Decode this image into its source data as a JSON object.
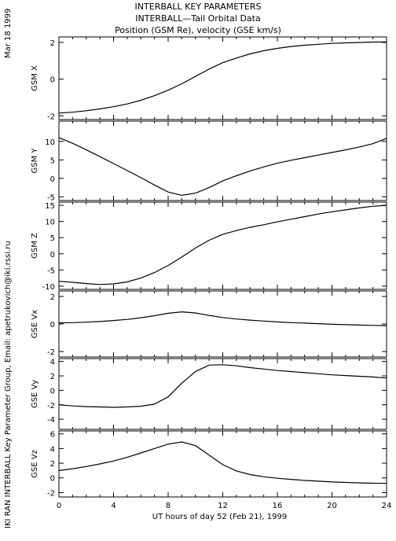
{
  "header": {
    "line1": "INTERBALL KEY PARAMETERS",
    "line2": "INTERBALL—Tail Orbital Data",
    "line3": "Position (GSM Re), velocity (GSE km/s)"
  },
  "side": {
    "date": "Mar 18 1999",
    "credit": "IKI RAN INTERBALL Key Parameter Group, Email: apetrukovich@iki.rssi.ru"
  },
  "chart_data": {
    "type": "line",
    "xlabel": "UT hours of day  52 (Feb 21), 1999",
    "xlim": [
      0,
      24
    ],
    "xticks": [
      0,
      4,
      8,
      12,
      16,
      20,
      24
    ],
    "grid": false,
    "panels": [
      {
        "ylabel": "GSM X",
        "ylim": [
          -2.2,
          2.3
        ],
        "yticks": [
          -2,
          0,
          2
        ],
        "x": [
          0,
          1,
          2,
          3,
          4,
          5,
          6,
          7,
          8,
          9,
          10,
          11,
          12,
          13,
          14,
          15,
          16,
          17,
          18,
          19,
          20,
          21,
          22,
          23,
          24
        ],
        "y": [
          -1.85,
          -1.8,
          -1.72,
          -1.62,
          -1.5,
          -1.35,
          -1.15,
          -0.9,
          -0.6,
          -0.25,
          0.15,
          0.55,
          0.9,
          1.15,
          1.38,
          1.55,
          1.68,
          1.78,
          1.85,
          1.9,
          1.95,
          1.98,
          2.0,
          2.02,
          2.03
        ]
      },
      {
        "ylabel": "GSM Y",
        "ylim": [
          -6,
          15.5
        ],
        "yticks": [
          -5,
          0,
          5,
          10
        ],
        "x": [
          0,
          1,
          2,
          3,
          4,
          5,
          6,
          7,
          8,
          9,
          10,
          11,
          12,
          13,
          14,
          15,
          16,
          17,
          18,
          19,
          20,
          21,
          22,
          23,
          24
        ],
        "y": [
          11,
          9.5,
          7.7,
          5.9,
          4.0,
          2.1,
          0.2,
          -1.8,
          -3.7,
          -4.6,
          -4.0,
          -2.5,
          -0.7,
          0.7,
          2.0,
          3.1,
          4.1,
          4.9,
          5.6,
          6.3,
          7.0,
          7.7,
          8.5,
          9.4,
          10.8
        ]
      },
      {
        "ylabel": "GSM Z",
        "ylim": [
          -11,
          16
        ],
        "yticks": [
          -10,
          -5,
          0,
          5,
          10,
          15
        ],
        "x": [
          0,
          1,
          2,
          3,
          4,
          5,
          6,
          7,
          8,
          9,
          10,
          11,
          12,
          13,
          14,
          15,
          16,
          17,
          18,
          19,
          20,
          21,
          22,
          23,
          24
        ],
        "y": [
          -8.5,
          -8.8,
          -9.2,
          -9.5,
          -9.3,
          -8.7,
          -7.5,
          -5.8,
          -3.6,
          -1.0,
          1.8,
          4.2,
          6.0,
          7.2,
          8.2,
          9.0,
          9.9,
          10.7,
          11.5,
          12.3,
          13.0,
          13.6,
          14.2,
          14.7,
          15.0
        ]
      },
      {
        "ylabel": "GSE Vx",
        "ylim": [
          -2.4,
          2.4
        ],
        "yticks": [
          -2,
          0,
          2
        ],
        "x": [
          0,
          1,
          2,
          3,
          4,
          5,
          6,
          7,
          8,
          9,
          10,
          11,
          12,
          13,
          14,
          15,
          16,
          17,
          18,
          19,
          20,
          21,
          22,
          23,
          24
        ],
        "y": [
          0.08,
          0.1,
          0.13,
          0.18,
          0.25,
          0.33,
          0.45,
          0.6,
          0.78,
          0.88,
          0.8,
          0.62,
          0.47,
          0.36,
          0.28,
          0.21,
          0.15,
          0.1,
          0.06,
          0.02,
          -0.02,
          -0.05,
          -0.08,
          -0.1,
          -0.12
        ]
      },
      {
        "ylabel": "GSE Vy",
        "ylim": [
          -5.4,
          4.4
        ],
        "yticks": [
          -4,
          -2,
          0,
          2,
          4
        ],
        "x": [
          0,
          1,
          2,
          3,
          4,
          5,
          6,
          7,
          8,
          9,
          10,
          11,
          12,
          13,
          14,
          15,
          16,
          17,
          18,
          19,
          20,
          21,
          22,
          23,
          24
        ],
        "y": [
          -2.0,
          -2.15,
          -2.25,
          -2.3,
          -2.35,
          -2.3,
          -2.2,
          -1.9,
          -0.9,
          1.0,
          2.6,
          3.5,
          3.55,
          3.4,
          3.15,
          2.95,
          2.75,
          2.6,
          2.45,
          2.3,
          2.15,
          2.05,
          1.95,
          1.85,
          1.7
        ]
      },
      {
        "ylabel": "GSE Vz",
        "ylim": [
          -2.6,
          6.4
        ],
        "yticks": [
          -2,
          0,
          2,
          4,
          6
        ],
        "x": [
          0,
          1,
          2,
          3,
          4,
          5,
          6,
          7,
          8,
          9,
          10,
          11,
          12,
          13,
          14,
          15,
          16,
          17,
          18,
          19,
          20,
          21,
          22,
          23,
          24
        ],
        "y": [
          1.0,
          1.25,
          1.55,
          1.9,
          2.3,
          2.8,
          3.4,
          4.0,
          4.6,
          4.9,
          4.4,
          3.1,
          1.8,
          0.95,
          0.45,
          0.15,
          -0.05,
          -0.2,
          -0.35,
          -0.45,
          -0.55,
          -0.62,
          -0.68,
          -0.72,
          -0.75
        ]
      }
    ]
  }
}
